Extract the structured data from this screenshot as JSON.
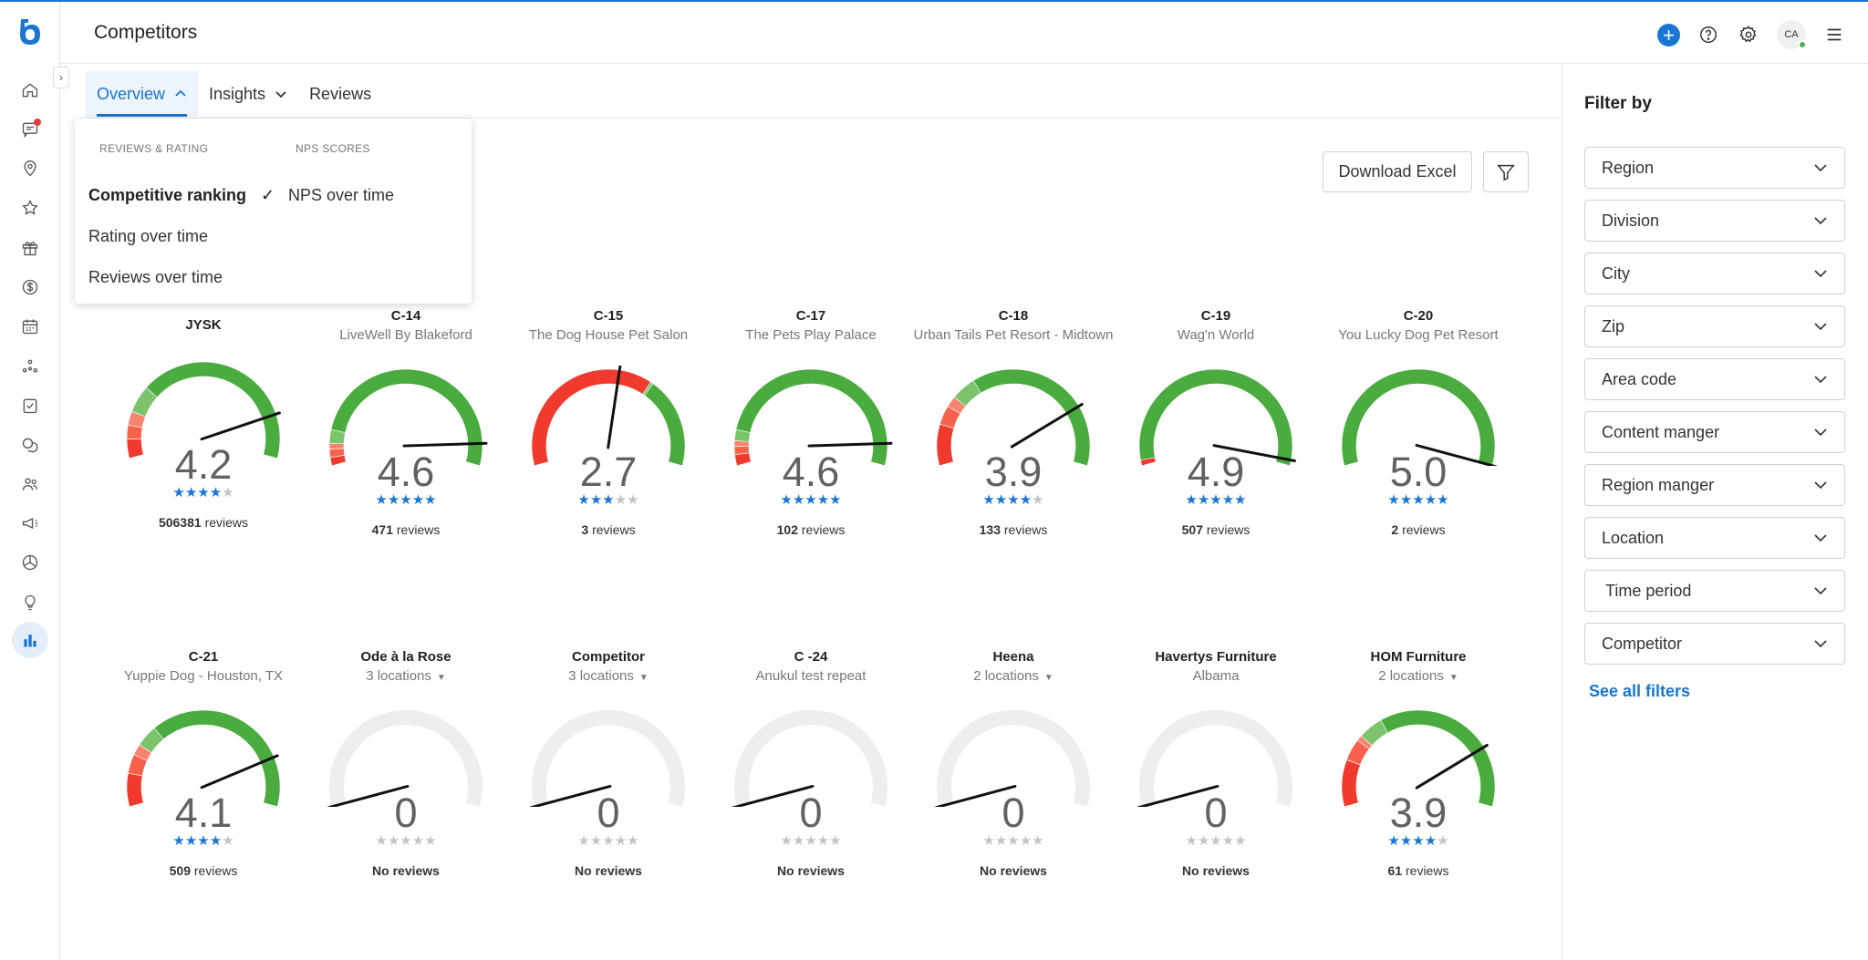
{
  "header": {
    "title": "Competitors",
    "avatar_initials": "CA"
  },
  "tabs": [
    {
      "label": "Overview",
      "active": true
    },
    {
      "label": "Insights",
      "active": false
    },
    {
      "label": "Reviews",
      "active": false
    }
  ],
  "dropdown": {
    "col1_heading": "REVIEWS & RATING",
    "col1_items": [
      "Competitive ranking",
      "Rating over time",
      "Reviews over time"
    ],
    "col1_selected": "Competitive ranking",
    "col2_heading": "NPS SCORES",
    "col2_items": [
      "NPS over time"
    ]
  },
  "actions": {
    "download_label": "Download Excel"
  },
  "competitors": [
    {
      "id": "JYSK",
      "name": "",
      "score": "4.2",
      "rating": 4.2,
      "stars": "★★★★★",
      "count": "506381",
      "reviews_suffix": "reviews",
      "segments": [
        0.07,
        0.05,
        0.05,
        0.1,
        0.73
      ]
    },
    {
      "id": "C-14",
      "name": "LiveWell By Blakeford",
      "score": "4.6",
      "rating": 4.6,
      "stars": "★★★★★",
      "count": "471",
      "reviews_suffix": "reviews",
      "segments": [
        0.03,
        0.03,
        0.02,
        0.05,
        0.87
      ]
    },
    {
      "id": "C-15",
      "name": "The Dog House Pet Salon",
      "score": "2.7",
      "rating": 2.7,
      "stars": "★★★★★",
      "count": "3",
      "reviews_suffix": "reviews",
      "segments": [
        0.66,
        0.0,
        0.0,
        0.01,
        0.33
      ]
    },
    {
      "id": "C-17",
      "name": "The Pets Play Palace",
      "score": "4.6",
      "rating": 4.6,
      "stars": "★★★★★",
      "count": "102",
      "reviews_suffix": "reviews",
      "segments": [
        0.04,
        0.03,
        0.02,
        0.04,
        0.87
      ]
    },
    {
      "id": "C-18",
      "name": "Urban Tails Pet Resort - Midtown",
      "score": "3.9",
      "rating": 3.9,
      "stars": "★★★★★",
      "count": "133",
      "reviews_suffix": "reviews",
      "segments": [
        0.15,
        0.07,
        0.04,
        0.09,
        0.65
      ]
    },
    {
      "id": "C-19",
      "name": "Wag'n World",
      "score": "4.9",
      "rating": 4.9,
      "stars": "★★★★★",
      "count": "507",
      "reviews_suffix": "reviews",
      "segments": [
        0.02,
        0.0,
        0.0,
        0.0,
        0.98
      ]
    },
    {
      "id": "C-20",
      "name": "You Lucky Dog Pet Resort",
      "score": "5.0",
      "rating": 5.0,
      "stars": "★★★★★",
      "count": "2",
      "reviews_suffix": "reviews",
      "segments": [
        0,
        0,
        0,
        0,
        1
      ]
    },
    {
      "id": "C-21",
      "name": "Yuppie Dog - Houston, TX",
      "score": "4.1",
      "rating": 4.1,
      "stars": "★★★★★",
      "count": "509",
      "reviews_suffix": "reviews",
      "segments": [
        0.12,
        0.07,
        0.04,
        0.08,
        0.69
      ]
    },
    {
      "id": "Ode à la Rose",
      "name": "3 locations",
      "score": "0",
      "rating": 0,
      "stars": "★★★★★",
      "count": "",
      "reviews_suffix": "No reviews",
      "locations": true,
      "segments": []
    },
    {
      "id": "Competitor",
      "name": "3 locations",
      "score": "0",
      "rating": 0,
      "stars": "★★★★★",
      "count": "",
      "reviews_suffix": "No reviews",
      "locations": true,
      "segments": []
    },
    {
      "id": "C -24",
      "name": "Anukul test repeat",
      "score": "0",
      "rating": 0,
      "stars": "★★★★★",
      "count": "",
      "reviews_suffix": "No reviews",
      "segments": []
    },
    {
      "id": "Heena",
      "name": "2 locations",
      "score": "0",
      "rating": 0,
      "stars": "★★★★★",
      "count": "",
      "reviews_suffix": "No reviews",
      "locations": true,
      "segments": []
    },
    {
      "id": "Havertys Furniture",
      "name": "Albama",
      "score": "0",
      "rating": 0,
      "stars": "★★★★★",
      "count": "",
      "reviews_suffix": "No reviews",
      "segments": []
    },
    {
      "id": "HOM Furniture",
      "name": "2 locations",
      "score": "3.9",
      "rating": 3.9,
      "stars": "★★★★★",
      "count": "61",
      "reviews_suffix": "reviews",
      "locations": true,
      "segments": [
        0.17,
        0.08,
        0.02,
        0.09,
        0.64
      ]
    }
  ],
  "filter_panel": {
    "heading": "Filter by",
    "selects": [
      "Region",
      "Division",
      "City",
      "Zip",
      "Area code",
      "Content manger",
      "Region manger",
      "Location",
      "Time period",
      "Competitor"
    ],
    "see_all": "See all filters"
  },
  "colors": {
    "accent": "#1976d2",
    "gauge_red": "#f03a2e",
    "gauge_orange": "#f7624d",
    "gauge_salmon": "#f8846e",
    "gauge_lightgreen": "#7cc36c",
    "gauge_green": "#4aab3f",
    "gauge_empty": "#eeeeee",
    "star_filled": "#1976d2",
    "star_empty": "#c4c4c4"
  },
  "rail_icons": [
    "home-icon",
    "messages-icon",
    "location-icon",
    "star-icon",
    "gift-icon",
    "dollar-icon",
    "calendar-icon",
    "network-icon",
    "checklist-icon",
    "chat-bubbles-icon",
    "people-icon",
    "megaphone-icon",
    "pie-icon",
    "lightbulb-icon",
    "bar-chart-icon"
  ]
}
